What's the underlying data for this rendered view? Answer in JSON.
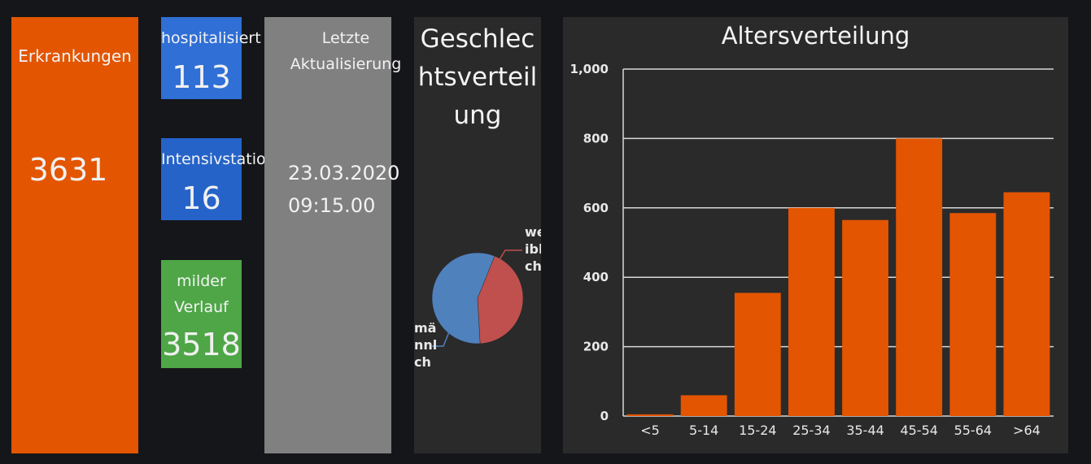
{
  "tiles": {
    "erkrankungen": {
      "label": "Erkrankungen",
      "value": "3631",
      "color": "#e35500"
    },
    "hospitalisiert": {
      "label": "hospitalisiert",
      "value": "113",
      "color": "#2f6fd6"
    },
    "intensiv": {
      "label": "Intensivstatio",
      "value": "16",
      "color": "#2563c9"
    },
    "mild": {
      "label": "milder Verlauf",
      "value": "3518",
      "color": "#4ea647"
    },
    "update": {
      "label": "Letzte Aktualisierung",
      "date": "23.03.2020",
      "time": "09:15.00"
    }
  },
  "gender_panel": {
    "title": "Geschlechtsverteilung",
    "chart_data": {
      "type": "pie",
      "slices": [
        {
          "label_lines": [
            "we",
            "ibl",
            "ch"
          ],
          "value": 43,
          "color": "#c0504d"
        },
        {
          "label_lines": [
            "mä",
            "nnl",
            "ch"
          ],
          "value": 57,
          "color": "#4f81bd"
        }
      ]
    }
  },
  "age_panel": {
    "title": "Altersverteilung",
    "chart_data": {
      "type": "bar",
      "categories": [
        "<5",
        "5-14",
        "15-24",
        "25-34",
        "35-44",
        "45-54",
        "55-64",
        ">64"
      ],
      "values": [
        5,
        60,
        355,
        600,
        565,
        800,
        585,
        645
      ],
      "ylim": [
        0,
        1000
      ],
      "yticks": [
        0,
        200,
        400,
        600,
        800,
        1000
      ],
      "ytick_labels": [
        "0",
        "200",
        "400",
        "600",
        "800",
        "1,000"
      ],
      "grid": true,
      "bar_color": "#e35500"
    }
  }
}
